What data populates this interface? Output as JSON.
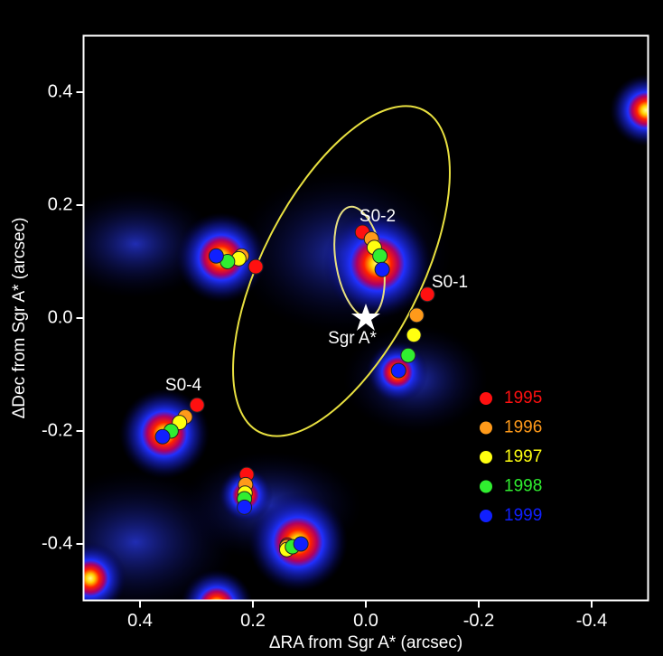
{
  "chart_data": {
    "type": "scatter",
    "xlabel": "ΔRA from Sgr A* (arcsec)",
    "ylabel": "ΔDec from Sgr A* (arcsec)",
    "xlim": [
      0.5,
      -0.5
    ],
    "ylim": [
      -0.5,
      0.5
    ],
    "xticks": [
      0.4,
      0.2,
      {
        "value": 0,
        "label": "0.0"
      },
      -0.2,
      -0.4
    ],
    "yticks": [
      -0.4,
      -0.2,
      {
        "value": 0,
        "label": "0.0"
      },
      0.2,
      0.4
    ],
    "legend": "right",
    "annotations": [
      "S0-2",
      "S0-1",
      "S0-4",
      "Sgr A*"
    ],
    "series": [
      {
        "name": "1995",
        "color": "#ff1010",
        "x": [
          0.195,
          0.006,
          -0.109,
          0.299,
          0.211,
          0.139
        ],
        "values": [
          0.091,
          0.152,
          0.042,
          -0.154,
          -0.277,
          -0.402
        ]
      },
      {
        "name": "1996",
        "color": "#ff9a1a",
        "x": [
          0.22,
          -0.01,
          -0.09,
          0.32,
          0.213,
          0.14
        ],
        "values": [
          0.11,
          0.14,
          0.005,
          -0.175,
          -0.295,
          -0.405
        ]
      },
      {
        "name": "1997",
        "color": "#ffff10",
        "x": [
          0.225,
          -0.015,
          -0.085,
          0.33,
          0.214,
          0.14
        ],
        "values": [
          0.105,
          0.125,
          -0.03,
          -0.185,
          -0.31,
          -0.41
        ]
      },
      {
        "name": "1998",
        "color": "#30ee30",
        "x": [
          0.245,
          -0.025,
          -0.075,
          0.345,
          0.215,
          0.13
        ],
        "values": [
          0.1,
          0.11,
          -0.066,
          -0.2,
          -0.32,
          -0.405
        ]
      },
      {
        "name": "1999",
        "color": "#1020ff",
        "x": [
          0.265,
          -0.029,
          -0.058,
          0.36,
          0.215,
          0.115
        ],
        "values": [
          0.11,
          0.086,
          -0.093,
          -0.21,
          -0.335,
          -0.4
        ]
      }
    ]
  }
}
